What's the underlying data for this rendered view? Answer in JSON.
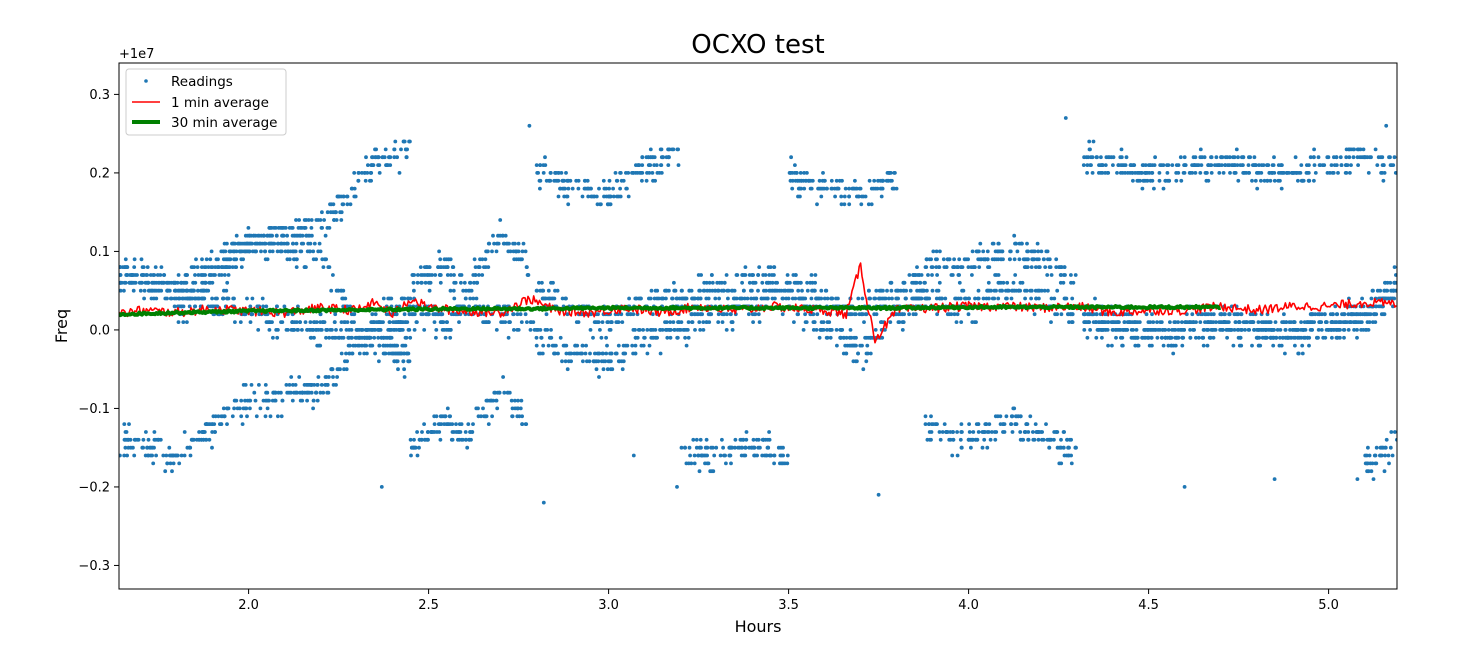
{
  "chart_data": {
    "type": "scatter",
    "title": "OCXO test",
    "xlabel": "Hours",
    "ylabel": "Freq",
    "y_offset_label": "+1e7",
    "xlim": [
      1.64,
      5.19
    ],
    "ylim": [
      -0.33,
      0.34
    ],
    "x_ticks": [
      2.0,
      2.5,
      3.0,
      3.5,
      4.0,
      4.5,
      5.0
    ],
    "x_tick_labels": [
      "2.0",
      "2.5",
      "3.0",
      "3.5",
      "4.0",
      "4.5",
      "5.0"
    ],
    "y_ticks": [
      0.3,
      0.2,
      0.1,
      0.0,
      -0.1,
      -0.2,
      -0.3
    ],
    "y_tick_labels": [
      "0.3",
      "0.2",
      "0.1",
      "0.0",
      "−0.1",
      "−0.2",
      "−0.3"
    ],
    "grid": false,
    "legend_position": "top-left",
    "series": [
      {
        "name": "Readings",
        "kind": "points",
        "color": "#1f77b4",
        "bands": [
          {
            "x": [
              1.64,
              1.8,
              2.0,
              2.2,
              2.35,
              2.45
            ],
            "y": [
              0.08,
              0.05,
              0.11,
              0.13,
              0.21,
              0.23
            ]
          },
          {
            "x": [
              1.64,
              1.8,
              2.0,
              2.2,
              2.35,
              2.45
            ],
            "y": [
              -0.14,
              -0.16,
              -0.09,
              -0.08,
              0.01,
              0.03
            ]
          },
          {
            "x": [
              1.64,
              1.8,
              2.0,
              2.2,
              2.35,
              2.45
            ],
            "y": [
              0.06,
              0.05,
              0.02,
              0.0,
              -0.01,
              0.0
            ]
          },
          {
            "x": [
              1.8,
              2.0,
              2.2,
              2.3,
              2.45
            ],
            "y": [
              0.02,
              0.11,
              0.1,
              0.0,
              -0.04
            ]
          },
          {
            "x": [
              2.45,
              2.55,
              2.6,
              2.7,
              2.78
            ],
            "y": [
              0.06,
              0.08,
              0.05,
              0.12,
              0.08
            ]
          },
          {
            "x": [
              2.45,
              2.55,
              2.6,
              2.7,
              2.78
            ],
            "y": [
              -0.15,
              -0.12,
              -0.14,
              -0.08,
              -0.12
            ]
          },
          {
            "x": [
              2.45,
              2.55,
              2.6,
              2.7,
              2.78
            ],
            "y": [
              0.02,
              0.01,
              0.03,
              0.02,
              0.0
            ]
          },
          {
            "x": [
              2.78,
              2.9,
              3.0,
              3.1,
              3.2,
              3.3,
              3.4,
              3.5,
              3.6,
              3.7,
              3.8,
              3.88
            ],
            "y": [
              0.0,
              -0.03,
              -0.04,
              -0.01,
              0.0,
              0.02,
              0.03,
              0.04,
              0.0,
              -0.03,
              0.02,
              0.04
            ]
          },
          {
            "x": [
              2.8,
              2.9,
              3.0,
              3.1,
              3.2,
              3.3,
              3.4,
              3.5,
              3.6,
              3.7,
              3.8,
              3.88
            ],
            "y": [
              0.05,
              0.02,
              0.01,
              0.04,
              0.04,
              0.05,
              0.06,
              0.06,
              0.04,
              0.02,
              0.05,
              0.06
            ]
          },
          {
            "x": [
              2.8,
              2.9,
              3.0,
              3.1,
              3.2
            ],
            "y": [
              0.2,
              0.18,
              0.17,
              0.21,
              0.22
            ]
          },
          {
            "x": [
              3.5,
              3.6,
              3.7,
              3.8
            ],
            "y": [
              0.2,
              0.18,
              0.17,
              0.19
            ]
          },
          {
            "x": [
              3.2,
              3.3,
              3.4,
              3.5
            ],
            "y": [
              -0.16,
              -0.16,
              -0.15,
              -0.16
            ]
          },
          {
            "x": [
              3.88,
              4.0,
              4.1,
              4.2,
              4.3
            ],
            "y": [
              0.08,
              0.08,
              0.1,
              0.09,
              0.06
            ]
          },
          {
            "x": [
              3.88,
              4.0,
              4.1,
              4.2,
              4.3
            ],
            "y": [
              -0.13,
              -0.14,
              -0.12,
              -0.13,
              -0.16
            ]
          },
          {
            "x": [
              3.88,
              4.0,
              4.1,
              4.2,
              4.3
            ],
            "y": [
              0.04,
              0.03,
              0.05,
              0.04,
              0.02
            ]
          },
          {
            "x": [
              4.32,
              4.5,
              4.7,
              4.9,
              5.1,
              5.19
            ],
            "y": [
              0.22,
              0.2,
              0.21,
              0.2,
              0.22,
              0.21
            ]
          },
          {
            "x": [
              4.32,
              4.5,
              4.7,
              4.9,
              5.1,
              5.19
            ],
            "y": [
              0.01,
              -0.01,
              0.0,
              -0.01,
              0.01,
              0.05
            ]
          },
          {
            "x": [
              4.32,
              4.5,
              4.7,
              4.9,
              5.1,
              5.19
            ],
            "y": [
              0.02,
              0.0,
              0.01,
              0.0,
              0.02,
              0.06
            ]
          },
          {
            "x": [
              5.1,
              5.15,
              5.19
            ],
            "y": [
              -0.17,
              -0.16,
              -0.14
            ]
          }
        ],
        "outliers": [
          {
            "x": 2.37,
            "y": -0.2
          },
          {
            "x": 2.78,
            "y": 0.26
          },
          {
            "x": 2.82,
            "y": -0.22
          },
          {
            "x": 3.07,
            "y": -0.16
          },
          {
            "x": 3.19,
            "y": -0.2
          },
          {
            "x": 3.75,
            "y": -0.21
          },
          {
            "x": 4.27,
            "y": 0.27
          },
          {
            "x": 4.6,
            "y": -0.2
          },
          {
            "x": 4.85,
            "y": -0.19
          },
          {
            "x": 5.08,
            "y": -0.19
          },
          {
            "x": 5.16,
            "y": 0.26
          }
        ]
      },
      {
        "name": "1 min average",
        "kind": "line",
        "color": "#ff0000",
        "stroke": "thin",
        "x": [
          1.64,
          1.7,
          1.8,
          1.9,
          2.0,
          2.1,
          2.2,
          2.3,
          2.35,
          2.4,
          2.45,
          2.5,
          2.6,
          2.7,
          2.78,
          2.85,
          2.95,
          3.05,
          3.15,
          3.25,
          3.35,
          3.45,
          3.5,
          3.6,
          3.66,
          3.7,
          3.72,
          3.74,
          3.76,
          3.8,
          3.9,
          4.0,
          4.1,
          4.2,
          4.3,
          4.4,
          4.5,
          4.6,
          4.7,
          4.8,
          4.9,
          5.0,
          5.1,
          5.19
        ],
        "y": [
          0.02,
          0.025,
          0.022,
          0.027,
          0.024,
          0.022,
          0.028,
          0.025,
          0.035,
          0.02,
          0.04,
          0.028,
          0.024,
          0.022,
          0.04,
          0.025,
          0.022,
          0.028,
          0.022,
          0.03,
          0.024,
          0.03,
          0.028,
          0.025,
          0.02,
          0.083,
          0.03,
          -0.012,
          0.0,
          0.025,
          0.028,
          0.03,
          0.03,
          0.028,
          0.03,
          0.022,
          0.025,
          0.025,
          0.03,
          0.025,
          0.03,
          0.03,
          0.035,
          0.033
        ]
      },
      {
        "name": "30 min average",
        "kind": "line",
        "color": "#008000",
        "stroke": "thick",
        "x": [
          1.64,
          1.8,
          2.0,
          2.2,
          2.4,
          2.6,
          2.8,
          3.0,
          3.2,
          3.4,
          3.6,
          3.8,
          4.0,
          4.2,
          4.4,
          4.6,
          4.7
        ],
        "y": [
          0.02,
          0.022,
          0.024,
          0.025,
          0.026,
          0.027,
          0.027,
          0.028,
          0.028,
          0.028,
          0.028,
          0.028,
          0.029,
          0.029,
          0.029,
          0.029,
          0.029
        ]
      }
    ]
  }
}
